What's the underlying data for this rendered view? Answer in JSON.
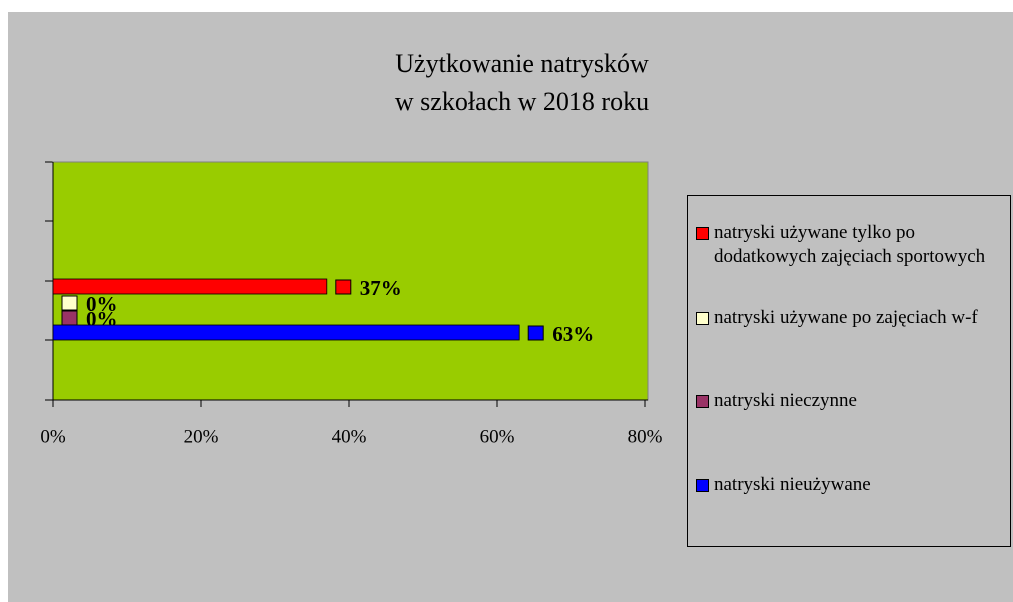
{
  "chart_data": {
    "type": "hbar",
    "title": [
      "Użytkowanie natrysków",
      "w szkołach w 2018 roku"
    ],
    "categories": [
      null
    ],
    "series": [
      {
        "name": "natryski używane tylko po dodatkowych zajęciach sportowych",
        "color": "#ff0000",
        "values": [
          37
        ],
        "value_labels": [
          "37%"
        ]
      },
      {
        "name": "natryski używane po zajęciach w-f",
        "color": "#ffffcc",
        "values": [
          0
        ],
        "value_labels": [
          "0%"
        ]
      },
      {
        "name": "natryski nieczynne",
        "color": "#993366",
        "values": [
          0
        ],
        "value_labels": [
          "0%"
        ]
      },
      {
        "name": "natryski nieużywane",
        "color": "#0000ff",
        "values": [
          63
        ],
        "value_labels": [
          "63%"
        ]
      }
    ],
    "xlim": [
      0,
      80
    ],
    "xticks": [
      {
        "value": 0,
        "label": "0%"
      },
      {
        "value": 20,
        "label": "20%"
      },
      {
        "value": 40,
        "label": "40%"
      },
      {
        "value": 60,
        "label": "60%"
      },
      {
        "value": 80,
        "label": "80%"
      }
    ],
    "plot_color": "#99cc00",
    "legend": "right"
  }
}
